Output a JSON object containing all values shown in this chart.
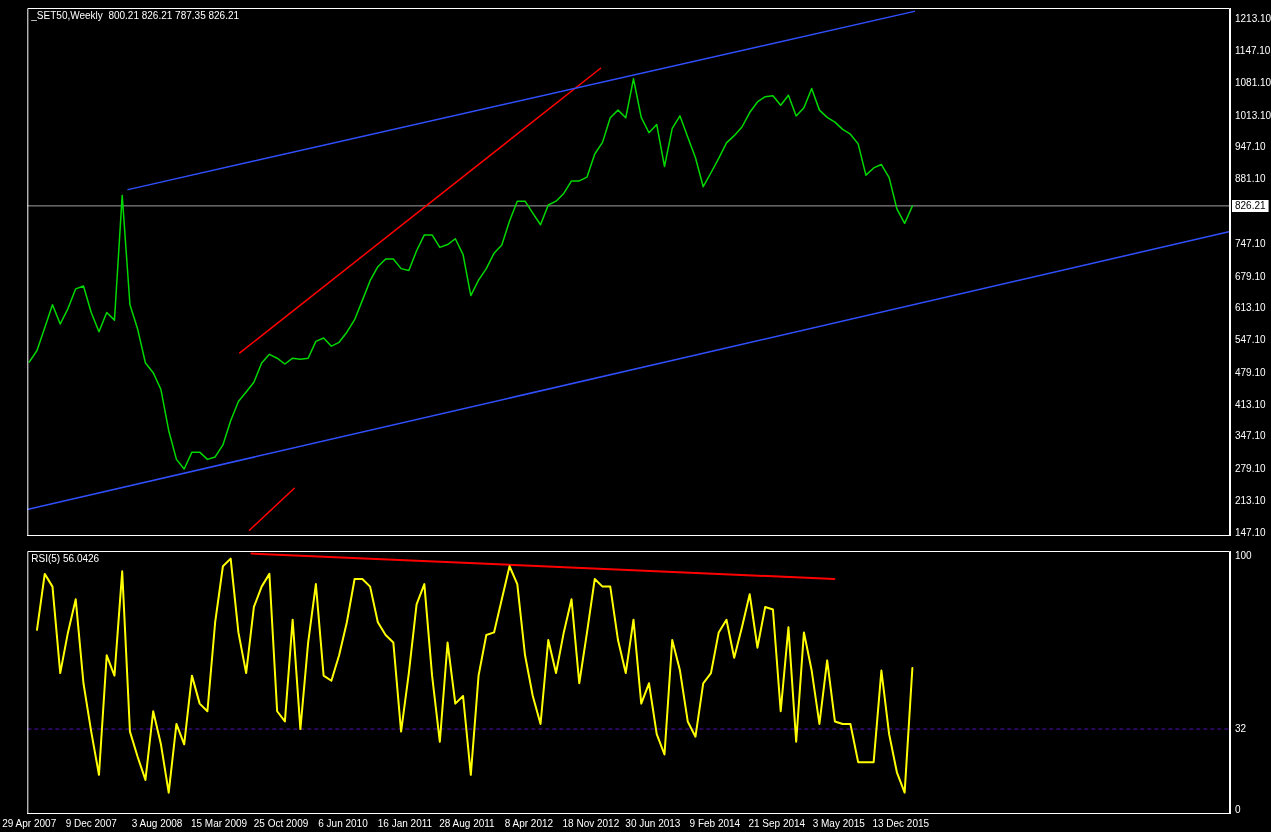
{
  "chart_data": [
    {
      "type": "line",
      "title": "_SET50,Weekly  800.21 826.21 787.35 826.21",
      "xlim": [
        "2007-04-22",
        "2019-03-17"
      ],
      "ylim": [
        143,
        1237
      ],
      "yticks": [
        {
          "value": 147.1,
          "label": "147.10"
        },
        {
          "value": 213.1,
          "label": "213.10"
        },
        {
          "value": 279.1,
          "label": "279.10"
        },
        {
          "value": 347.1,
          "label": "347.10"
        },
        {
          "value": 413.1,
          "label": "413.10"
        },
        {
          "value": 479.1,
          "label": "479.10"
        },
        {
          "value": 547.1,
          "label": "547.10"
        },
        {
          "value": 613.1,
          "label": "613.10"
        },
        {
          "value": 679.1,
          "label": "679.10"
        },
        {
          "value": 747.1,
          "label": "747.10"
        },
        {
          "value": 881.1,
          "label": "881.10"
        },
        {
          "value": 947.1,
          "label": "947.10"
        },
        {
          "value": 1013.1,
          "label": "1013.10"
        },
        {
          "value": 1081.1,
          "label": "1081.10"
        },
        {
          "value": 1147.1,
          "label": "1147.10"
        },
        {
          "value": 1213.1,
          "label": "1213.10"
        }
      ],
      "tick_labels": "y",
      "grid": false,
      "legend": false,
      "ref_lines": [
        {
          "axis": "y",
          "value": 826.21,
          "label": "826.21",
          "color": "#a0a0a0"
        }
      ],
      "series": [
        {
          "color": "#00d800",
          "x": [
            "2007-04-29",
            "2007-05-27",
            "2007-06-24",
            "2007-07-22",
            "2007-08-19",
            "2007-09-16",
            "2007-10-14",
            "2007-11-11",
            "2007-12-09",
            "2008-01-06",
            "2008-02-03",
            "2008-03-02",
            "2008-03-30",
            "2008-04-27",
            "2008-05-25",
            "2008-06-22",
            "2008-07-20",
            "2008-08-17",
            "2008-09-14",
            "2008-10-12",
            "2008-11-09",
            "2008-12-07",
            "2009-01-04",
            "2009-02-01",
            "2009-03-01",
            "2009-03-29",
            "2009-04-26",
            "2009-05-24",
            "2009-06-21",
            "2009-07-19",
            "2009-08-16",
            "2009-09-13",
            "2009-10-11",
            "2009-11-08",
            "2009-12-06",
            "2010-01-03",
            "2010-01-31",
            "2010-02-28",
            "2010-03-28",
            "2010-04-25",
            "2010-05-23",
            "2010-06-20",
            "2010-07-18",
            "2010-08-15",
            "2010-09-12",
            "2010-10-10",
            "2010-11-07",
            "2010-12-05",
            "2011-01-02",
            "2011-01-30",
            "2011-02-27",
            "2011-03-27",
            "2011-04-24",
            "2011-05-22",
            "2011-06-19",
            "2011-07-17",
            "2011-08-14",
            "2011-09-11",
            "2011-10-09",
            "2011-11-06",
            "2011-12-04",
            "2012-01-01",
            "2012-01-29",
            "2012-02-26",
            "2012-03-25",
            "2012-04-22",
            "2012-05-20",
            "2012-06-17",
            "2012-07-15",
            "2012-08-12",
            "2012-09-09",
            "2012-10-07",
            "2012-11-04",
            "2012-12-02",
            "2012-12-30",
            "2013-01-27",
            "2013-02-24",
            "2013-03-24",
            "2013-04-21",
            "2013-05-19",
            "2013-06-16",
            "2013-07-14",
            "2013-08-11",
            "2013-09-08",
            "2013-10-06",
            "2013-11-03",
            "2013-12-01",
            "2013-12-29",
            "2014-01-26",
            "2014-02-23",
            "2014-03-23",
            "2014-04-20",
            "2014-05-18",
            "2014-06-15",
            "2014-07-13",
            "2014-08-10",
            "2014-09-07",
            "2014-10-05",
            "2014-11-02",
            "2014-11-30",
            "2014-12-28",
            "2015-01-25",
            "2015-02-22",
            "2015-03-22",
            "2015-04-19",
            "2015-05-17",
            "2015-06-14",
            "2015-07-12",
            "2015-08-09",
            "2015-09-06",
            "2015-10-04",
            "2015-11-01",
            "2015-11-29",
            "2015-12-27",
            "2016-01-24"
          ],
          "values": [
            502,
            526,
            573,
            621,
            581,
            613,
            654,
            660,
            605,
            565,
            605,
            589,
            848,
            621,
            570,
            500,
            480,
            445,
            360,
            300,
            280,
            315,
            315,
            300,
            305,
            330,
            380,
            420,
            440,
            460,
            500,
            518,
            510,
            498,
            510,
            508,
            510,
            545,
            552,
            535,
            543,
            564,
            590,
            630,
            671,
            700,
            716,
            716,
            696,
            692,
            733,
            766,
            766,
            740,
            746,
            758,
            725,
            640,
            672,
            696,
            728,
            745,
            795,
            836,
            836,
            811,
            787,
            828,
            836,
            852,
            878,
            878,
            886,
            934,
            958,
            1009,
            1025,
            1009,
            1090,
            1010,
            978,
            995,
            908,
            987,
            1013,
            969,
            926,
            866,
            895,
            925,
            957,
            972,
            990,
            1020,
            1042,
            1053,
            1055,
            1035,
            1056,
            1013,
            1030,
            1070,
            1025,
            1010,
            1000,
            985,
            975,
            955,
            890,
            905,
            912,
            885,
            820,
            790,
            826
          ]
        },
        {
          "color": "#3050ff",
          "x": [
            "2008-04-20",
            "2016-01-31"
          ],
          "values": [
            860,
            1230
          ]
        },
        {
          "color": "#3050ff",
          "x": [
            "2007-04-22",
            "2019-03-17"
          ],
          "values": [
            196,
            773
          ]
        },
        {
          "color": "#ff0000",
          "x": [
            "2009-05-29",
            "2012-12-23"
          ],
          "values": [
            521,
            1112
          ]
        },
        {
          "color": "#ff0000",
          "x": [
            "2009-12-12",
            "2009-07-03"
          ],
          "values": [
            240,
            153
          ]
        }
      ]
    },
    {
      "type": "line",
      "title": "RSI(5) 56.0426",
      "xlim": [
        "2007-04-22",
        "2019-03-17"
      ],
      "ylim": [
        -1,
        102
      ],
      "yticks": [
        0,
        32,
        100
      ],
      "xticks": [
        {
          "value": "2007-04-29",
          "label": "29 Apr 2007"
        },
        {
          "value": "2007-12-09",
          "label": "9 Dec 2007"
        },
        {
          "value": "2008-08-03",
          "label": "3 Aug 2008"
        },
        {
          "value": "2009-03-15",
          "label": "15 Mar 2009"
        },
        {
          "value": "2009-10-25",
          "label": "25 Oct 2009"
        },
        {
          "value": "2010-06-06",
          "label": "6 Jun 2010"
        },
        {
          "value": "2011-01-16",
          "label": "16 Jan 2011"
        },
        {
          "value": "2011-08-28",
          "label": "28 Aug 2011"
        },
        {
          "value": "2012-04-08",
          "label": "8 Apr 2012"
        },
        {
          "value": "2012-11-18",
          "label": "18 Nov 2012"
        },
        {
          "value": "2013-06-30",
          "label": "30 Jun 2013"
        },
        {
          "value": "2014-02-09",
          "label": "9 Feb 2014"
        },
        {
          "value": "2014-09-21",
          "label": "21 Sep 2014"
        },
        {
          "value": "2015-05-03",
          "label": "3 May 2015"
        },
        {
          "value": "2015-12-13",
          "label": "13 Dec 2015"
        }
      ],
      "grid": false,
      "legend": false,
      "ref_lines": [
        {
          "axis": "y",
          "value": 32,
          "color": "#5010b0",
          "line_style": "dashed"
        }
      ],
      "series": [
        {
          "color": "#ffff00",
          "x": [
            "2007-05-27",
            "2007-06-24",
            "2007-07-22",
            "2007-08-19",
            "2007-09-16",
            "2007-10-14",
            "2007-11-11",
            "2007-12-09",
            "2008-01-06",
            "2008-02-03",
            "2008-03-02",
            "2008-03-30",
            "2008-04-27",
            "2008-05-25",
            "2008-06-22",
            "2008-07-20",
            "2008-08-17",
            "2008-09-14",
            "2008-10-12",
            "2008-11-09",
            "2008-12-07",
            "2009-01-04",
            "2009-02-01",
            "2009-03-01",
            "2009-03-29",
            "2009-04-26",
            "2009-05-24",
            "2009-06-21",
            "2009-07-19",
            "2009-08-16",
            "2009-09-13",
            "2009-10-11",
            "2009-11-08",
            "2009-12-06",
            "2010-01-03",
            "2010-01-31",
            "2010-02-28",
            "2010-03-28",
            "2010-04-25",
            "2010-05-23",
            "2010-06-20",
            "2010-07-18",
            "2010-08-15",
            "2010-09-12",
            "2010-10-10",
            "2010-11-07",
            "2010-12-05",
            "2011-01-02",
            "2011-01-30",
            "2011-02-27",
            "2011-03-27",
            "2011-04-24",
            "2011-05-22",
            "2011-06-19",
            "2011-07-17",
            "2011-08-14",
            "2011-09-11",
            "2011-10-09",
            "2011-11-06",
            "2011-12-04",
            "2012-01-01",
            "2012-01-29",
            "2012-02-26",
            "2012-03-25",
            "2012-04-22",
            "2012-05-20",
            "2012-06-17",
            "2012-07-15",
            "2012-08-12",
            "2012-09-09",
            "2012-10-07",
            "2012-11-04",
            "2012-12-02",
            "2012-12-30",
            "2013-01-27",
            "2013-02-24",
            "2013-03-24",
            "2013-04-21",
            "2013-05-19",
            "2013-06-16",
            "2013-07-14",
            "2013-08-11",
            "2013-09-08",
            "2013-10-06",
            "2013-11-03",
            "2013-12-01",
            "2013-12-29",
            "2014-01-26",
            "2014-02-23",
            "2014-03-23",
            "2014-04-20",
            "2014-05-18",
            "2014-06-15",
            "2014-07-13",
            "2014-08-10",
            "2014-09-07",
            "2014-10-05",
            "2014-11-02",
            "2014-11-30",
            "2014-12-28",
            "2015-01-25",
            "2015-02-22",
            "2015-03-22",
            "2015-04-19",
            "2015-05-17",
            "2015-06-14",
            "2015-07-12",
            "2015-08-09",
            "2015-09-06",
            "2015-10-04",
            "2015-11-01",
            "2015-11-29",
            "2015-12-27",
            "2016-01-24"
          ],
          "values": [
            71,
            93,
            88,
            54,
            70,
            83,
            50,
            31,
            14,
            61,
            53,
            94,
            31,
            21,
            12,
            39,
            26,
            7,
            34,
            26,
            53,
            42,
            39,
            74,
            96,
            99,
            70,
            54,
            80,
            88,
            93,
            39,
            35,
            75,
            32,
            66,
            89,
            53,
            51,
            61,
            74,
            91,
            91,
            88,
            74,
            69,
            66,
            31,
            54,
            81,
            89,
            53,
            27,
            66,
            42,
            45,
            14,
            53,
            69,
            70,
            83,
            96,
            89,
            61,
            45,
            34,
            67,
            54,
            70,
            83,
            50,
            70,
            91,
            88,
            88,
            67,
            54,
            75,
            42,
            50,
            30,
            22,
            67,
            55,
            35,
            29,
            50,
            54,
            70,
            75,
            60,
            72,
            85,
            64,
            80,
            79,
            39,
            72,
            27,
            70,
            55,
            34,
            59,
            35,
            34,
            34,
            19,
            19,
            19,
            55,
            30,
            15,
            7,
            56
          ]
        },
        {
          "color": "#ff0000",
          "x": [
            "2009-07-10",
            "2015-04-17"
          ],
          "values": [
            101,
            91
          ]
        }
      ]
    }
  ]
}
